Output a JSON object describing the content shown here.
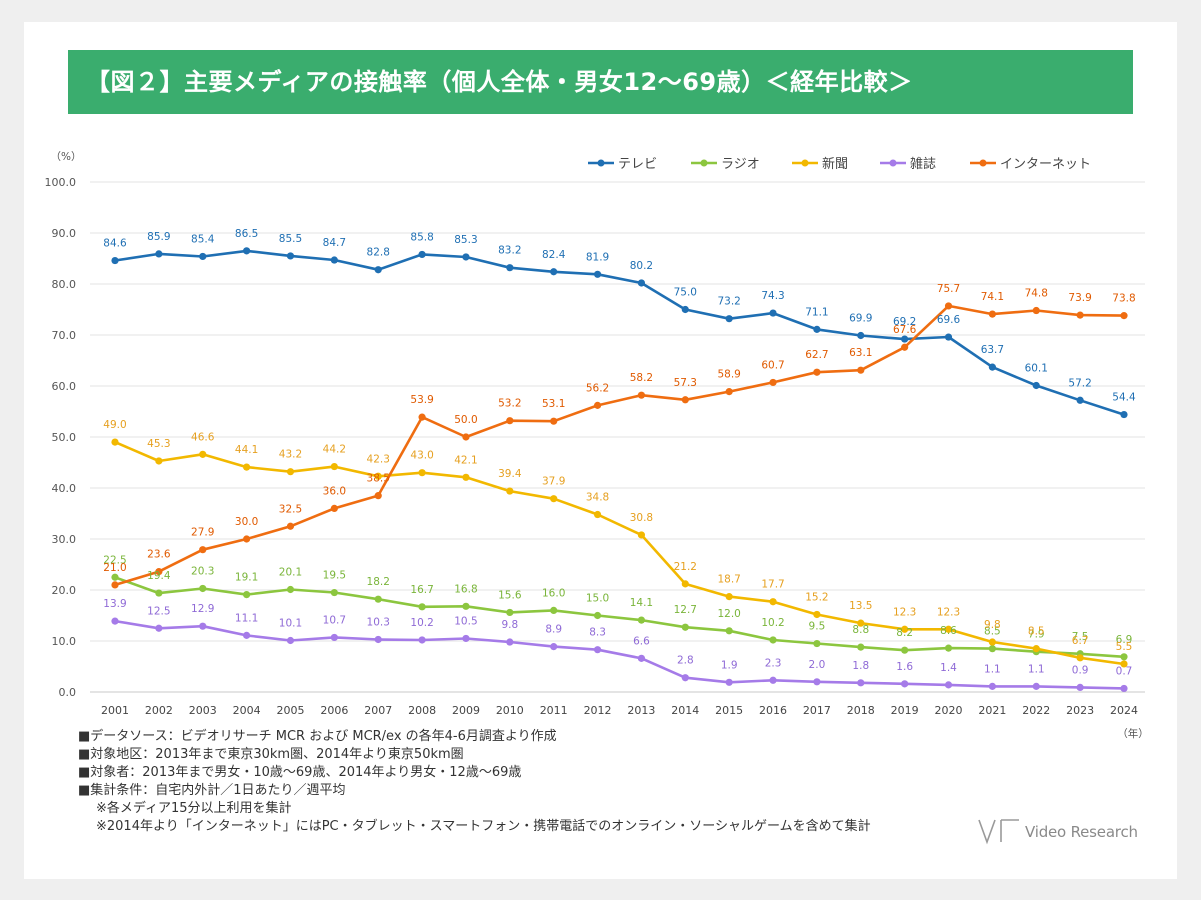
{
  "banner": {
    "title": "【図２】主要メディアの接触率（個人全体・男女12～69歳）＜経年比較＞"
  },
  "chart_data": {
    "type": "line",
    "title": "【図２】主要メディアの接触率（個人全体・男女12～69歳）＜経年比較＞",
    "y_unit_label": "（%）",
    "x_unit_label": "（年）",
    "ylim": [
      0,
      100
    ],
    "yticks": [
      "0.0",
      "10.0",
      "20.0",
      "30.0",
      "40.0",
      "50.0",
      "60.0",
      "70.0",
      "80.0",
      "90.0",
      "100.0"
    ],
    "grid": true,
    "legend_position": "top-right",
    "categories": [
      "2001",
      "2002",
      "2003",
      "2004",
      "2005",
      "2006",
      "2007",
      "2008",
      "2009",
      "2010",
      "2011",
      "2012",
      "2013",
      "2014",
      "2015",
      "2016",
      "2017",
      "2018",
      "2019",
      "2020",
      "2021",
      "2022",
      "2023",
      "2024"
    ],
    "series": [
      {
        "name": "テレビ",
        "color": "#1f6fb3",
        "label_color": "#1f6fb3",
        "values": [
          84.6,
          85.9,
          85.4,
          86.5,
          85.5,
          84.7,
          82.8,
          85.8,
          85.3,
          83.2,
          82.4,
          81.9,
          80.2,
          75.0,
          73.2,
          74.3,
          71.1,
          69.9,
          69.2,
          69.6,
          63.7,
          60.1,
          57.2,
          54.4
        ]
      },
      {
        "name": "ラジオ",
        "color": "#8cc63f",
        "label_color": "#7ab53a",
        "values": [
          22.5,
          19.4,
          20.3,
          19.1,
          20.1,
          19.5,
          18.2,
          16.7,
          16.8,
          15.6,
          16.0,
          15.0,
          14.1,
          12.7,
          12.0,
          10.2,
          9.5,
          8.8,
          8.2,
          8.6,
          8.5,
          7.9,
          7.5,
          6.9
        ]
      },
      {
        "name": "新聞",
        "color": "#f2b800",
        "label_color": "#e6a020",
        "values": [
          49.0,
          45.3,
          46.6,
          44.1,
          43.2,
          44.2,
          42.3,
          43.0,
          42.1,
          39.4,
          37.9,
          34.8,
          30.8,
          21.2,
          18.7,
          17.7,
          15.2,
          13.5,
          12.3,
          12.3,
          9.8,
          8.5,
          6.7,
          5.5
        ]
      },
      {
        "name": "雑誌",
        "color": "#a57be8",
        "label_color": "#8f6ad6",
        "values": [
          13.9,
          12.5,
          12.9,
          11.1,
          10.1,
          10.7,
          10.3,
          10.2,
          10.5,
          9.8,
          8.9,
          8.3,
          6.6,
          2.8,
          1.9,
          2.3,
          2.0,
          1.8,
          1.6,
          1.4,
          1.1,
          1.1,
          0.9,
          0.7
        ]
      },
      {
        "name": "インターネット",
        "color": "#ef6d11",
        "label_color": "#e05a00",
        "values": [
          21.0,
          23.6,
          27.9,
          30.0,
          32.5,
          36.0,
          38.5,
          53.9,
          50.0,
          53.2,
          53.1,
          56.2,
          58.2,
          57.3,
          58.9,
          60.7,
          62.7,
          63.1,
          67.6,
          75.7,
          74.1,
          74.8,
          73.9,
          73.8
        ]
      }
    ]
  },
  "notes": [
    "■データソース：ビデオリサーチ MCR および MCR/ex の各年4-6月調査より作成",
    "■対象地区：2013年まで東京30km圏、2014年より東京50km圏",
    "■対象者：2013年まで男女・10歳～69歳、2014年より男女・12歳～69歳",
    "■集計条件：自宅内外計／1日あたり／週平均",
    "※各メディア15分以上利用を集計",
    "※2014年より「インターネット」にはPC・タブレット・スマートフォン・携帯電話でのオンライン・ソーシャルゲームを含めて集計"
  ],
  "logo": {
    "text": "Video Research",
    "icon": "video-research-logo-icon"
  }
}
